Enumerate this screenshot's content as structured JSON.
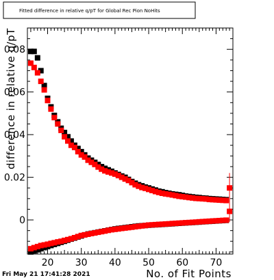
{
  "date_stamp": "Fri May 21 17:41:28 2021",
  "chart_data": {
    "type": "scatter",
    "title": "Fitted difference in relative q/pT for Global Rec Pion NoHits",
    "xlabel": "No. of Fit Points",
    "ylabel": "difference in relative q/pT",
    "xlim": [
      14,
      75
    ],
    "ylim": [
      -0.016,
      0.09
    ],
    "x_ticks": [
      20,
      30,
      40,
      50,
      60,
      70
    ],
    "x_tick_labels": [
      "20",
      "30",
      "40",
      "50",
      "60",
      "70"
    ],
    "y_ticks": [
      0,
      0.02,
      0.04,
      0.06,
      0.08
    ],
    "y_tick_labels": [
      "0",
      "0.02",
      "0.04",
      "0.06",
      "0.08"
    ],
    "grid": false,
    "series": [
      {
        "color": "#000000",
        "marker": "square",
        "points": [
          [
            15,
            0.079
          ],
          [
            16,
            0.079
          ],
          [
            17,
            0.076
          ],
          [
            18,
            0.07
          ],
          [
            19,
            0.063
          ],
          [
            20,
            0.057
          ],
          [
            21,
            0.053
          ],
          [
            22,
            0.049
          ],
          [
            23,
            0.046
          ],
          [
            24,
            0.043
          ],
          [
            25,
            0.041
          ],
          [
            26,
            0.039
          ],
          [
            27,
            0.037
          ],
          [
            28,
            0.035
          ],
          [
            29,
            0.0335
          ],
          [
            30,
            0.032
          ],
          [
            31,
            0.0305
          ],
          [
            32,
            0.029
          ],
          [
            33,
            0.028
          ],
          [
            34,
            0.027
          ],
          [
            35,
            0.026
          ],
          [
            36,
            0.025
          ],
          [
            37,
            0.0242
          ],
          [
            38,
            0.0235
          ],
          [
            39,
            0.0228
          ],
          [
            40,
            0.022
          ],
          [
            41,
            0.0213
          ],
          [
            42,
            0.0206
          ],
          [
            43,
            0.02
          ],
          [
            44,
            0.019
          ],
          [
            45,
            0.018
          ],
          [
            46,
            0.0172
          ],
          [
            47,
            0.0165
          ],
          [
            48,
            0.016
          ],
          [
            49,
            0.0154
          ],
          [
            50,
            0.015
          ],
          [
            51,
            0.0145
          ],
          [
            52,
            0.014
          ],
          [
            53,
            0.0135
          ],
          [
            54,
            0.0132
          ],
          [
            55,
            0.0128
          ],
          [
            56,
            0.0125
          ],
          [
            57,
            0.0122
          ],
          [
            58,
            0.012
          ],
          [
            59,
            0.0118
          ],
          [
            60,
            0.0115
          ],
          [
            61,
            0.0112
          ],
          [
            62,
            0.011
          ],
          [
            63,
            0.0108
          ],
          [
            64,
            0.0106
          ],
          [
            65,
            0.0105
          ],
          [
            66,
            0.0103
          ],
          [
            67,
            0.0102
          ],
          [
            68,
            0.01
          ],
          [
            69,
            0.0099
          ],
          [
            70,
            0.0098
          ],
          [
            71,
            0.0097
          ],
          [
            72,
            0.0096
          ],
          [
            73,
            0.0095
          ],
          [
            15,
            -0.015
          ],
          [
            16,
            -0.0145
          ],
          [
            17,
            -0.014
          ],
          [
            18,
            -0.0135
          ],
          [
            19,
            -0.013
          ],
          [
            20,
            -0.0125
          ],
          [
            21,
            -0.012
          ],
          [
            22,
            -0.0115
          ],
          [
            23,
            -0.011
          ],
          [
            24,
            -0.0105
          ],
          [
            25,
            -0.01
          ],
          [
            26,
            -0.0095
          ],
          [
            27,
            -0.009
          ],
          [
            28,
            -0.0085
          ],
          [
            29,
            -0.008
          ],
          [
            30,
            -0.0075
          ],
          [
            31,
            -0.007
          ],
          [
            32,
            -0.0066
          ],
          [
            33,
            -0.0063
          ],
          [
            34,
            -0.006
          ],
          [
            35,
            -0.0057
          ],
          [
            36,
            -0.0054
          ],
          [
            37,
            -0.0051
          ],
          [
            38,
            -0.0048
          ],
          [
            39,
            -0.0045
          ],
          [
            40,
            -0.0042
          ],
          [
            41,
            -0.004
          ],
          [
            42,
            -0.0038
          ],
          [
            43,
            -0.0036
          ],
          [
            44,
            -0.0034
          ],
          [
            45,
            -0.0032
          ],
          [
            46,
            -0.003
          ],
          [
            47,
            -0.0028
          ],
          [
            48,
            -0.0027
          ],
          [
            49,
            -0.0026
          ],
          [
            50,
            -0.0025
          ],
          [
            51,
            -0.0024
          ],
          [
            52,
            -0.0023
          ],
          [
            53,
            -0.0022
          ],
          [
            54,
            -0.0021
          ],
          [
            55,
            -0.002
          ],
          [
            56,
            -0.0019
          ],
          [
            57,
            -0.0018
          ],
          [
            58,
            -0.0017
          ],
          [
            59,
            -0.0016
          ],
          [
            60,
            -0.0015
          ],
          [
            61,
            -0.0014
          ],
          [
            62,
            -0.0013
          ],
          [
            63,
            -0.0012
          ],
          [
            64,
            -0.0011
          ],
          [
            65,
            -0.001
          ],
          [
            66,
            -0.0009
          ],
          [
            67,
            -0.0008
          ],
          [
            68,
            -0.0007
          ],
          [
            69,
            -0.0006
          ],
          [
            70,
            -0.0005
          ],
          [
            71,
            -0.0004
          ],
          [
            72,
            -0.0003
          ],
          [
            73,
            -0.0002
          ]
        ]
      },
      {
        "color": "#ff0000",
        "marker": "square",
        "points": [
          [
            15,
            0.0735
          ],
          [
            16,
            0.0715
          ],
          [
            17,
            0.069
          ],
          [
            18,
            0.065
          ],
          [
            19,
            0.061
          ],
          [
            20,
            0.056
          ],
          [
            21,
            0.052
          ],
          [
            22,
            0.048
          ],
          [
            23,
            0.045
          ],
          [
            24,
            0.042
          ],
          [
            25,
            0.039
          ],
          [
            26,
            0.037
          ],
          [
            27,
            0.035
          ],
          [
            28,
            0.034
          ],
          [
            29,
            0.032
          ],
          [
            30,
            0.0305
          ],
          [
            31,
            0.0295
          ],
          [
            32,
            0.028
          ],
          [
            33,
            0.027
          ],
          [
            34,
            0.026
          ],
          [
            35,
            0.0248
          ],
          [
            36,
            0.0238
          ],
          [
            37,
            0.023
          ],
          [
            38,
            0.0225
          ],
          [
            39,
            0.022
          ],
          [
            40,
            0.0215
          ],
          [
            41,
            0.0208
          ],
          [
            42,
            0.02
          ],
          [
            43,
            0.0192
          ],
          [
            44,
            0.0185
          ],
          [
            45,
            0.0175
          ],
          [
            46,
            0.0165
          ],
          [
            47,
            0.0158
          ],
          [
            48,
            0.0152
          ],
          [
            49,
            0.0148
          ],
          [
            50,
            0.0143
          ],
          [
            51,
            0.0138
          ],
          [
            52,
            0.0133
          ],
          [
            53,
            0.0129
          ],
          [
            54,
            0.0125
          ],
          [
            55,
            0.0122
          ],
          [
            56,
            0.012
          ],
          [
            57,
            0.0117
          ],
          [
            58,
            0.0114
          ],
          [
            59,
            0.0111
          ],
          [
            60,
            0.0109
          ],
          [
            61,
            0.0107
          ],
          [
            62,
            0.0105
          ],
          [
            63,
            0.0103
          ],
          [
            64,
            0.0101
          ],
          [
            65,
            0.01
          ],
          [
            66,
            0.0099
          ],
          [
            67,
            0.0098
          ],
          [
            68,
            0.0096
          ],
          [
            69,
            0.0095
          ],
          [
            70,
            0.0094
          ],
          [
            71,
            0.0093
          ],
          [
            72,
            0.0092
          ],
          [
            73,
            0.0091
          ],
          [
            74,
            0.015
          ],
          [
            15,
            -0.0135
          ],
          [
            16,
            -0.013
          ],
          [
            17,
            -0.0125
          ],
          [
            18,
            -0.012
          ],
          [
            19,
            -0.0117
          ],
          [
            20,
            -0.0114
          ],
          [
            21,
            -0.011
          ],
          [
            22,
            -0.0107
          ],
          [
            23,
            -0.0103
          ],
          [
            24,
            -0.01
          ],
          [
            25,
            -0.0096
          ],
          [
            26,
            -0.0092
          ],
          [
            27,
            -0.0088
          ],
          [
            28,
            -0.0083
          ],
          [
            29,
            -0.0078
          ],
          [
            30,
            -0.0073
          ],
          [
            31,
            -0.007
          ],
          [
            32,
            -0.0067
          ],
          [
            33,
            -0.0064
          ],
          [
            34,
            -0.0061
          ],
          [
            35,
            -0.0058
          ],
          [
            36,
            -0.0055
          ],
          [
            37,
            -0.0052
          ],
          [
            38,
            -0.0049
          ],
          [
            39,
            -0.0046
          ],
          [
            40,
            -0.0044
          ],
          [
            41,
            -0.0042
          ],
          [
            42,
            -0.004
          ],
          [
            43,
            -0.0038
          ],
          [
            44,
            -0.0036
          ],
          [
            45,
            -0.0034
          ],
          [
            46,
            -0.0032
          ],
          [
            47,
            -0.003
          ],
          [
            48,
            -0.0028
          ],
          [
            49,
            -0.0026
          ],
          [
            50,
            -0.0024
          ],
          [
            51,
            -0.0023
          ],
          [
            52,
            -0.0022
          ],
          [
            53,
            -0.0021
          ],
          [
            54,
            -0.002
          ],
          [
            55,
            -0.0019
          ],
          [
            56,
            -0.0018
          ],
          [
            57,
            -0.0017
          ],
          [
            58,
            -0.0016
          ],
          [
            59,
            -0.0015
          ],
          [
            60,
            -0.0014
          ],
          [
            61,
            -0.0013
          ],
          [
            62,
            -0.0012
          ],
          [
            63,
            -0.0011
          ],
          [
            64,
            -0.001
          ],
          [
            65,
            -0.0009
          ],
          [
            66,
            -0.0008
          ],
          [
            67,
            -0.0007
          ],
          [
            68,
            -0.0006
          ],
          [
            69,
            -0.0005
          ],
          [
            70,
            -0.0004
          ],
          [
            71,
            -0.0003
          ],
          [
            72,
            -0.0002
          ],
          [
            73,
            -0.0001
          ],
          [
            74,
            0.004
          ]
        ]
      }
    ]
  }
}
